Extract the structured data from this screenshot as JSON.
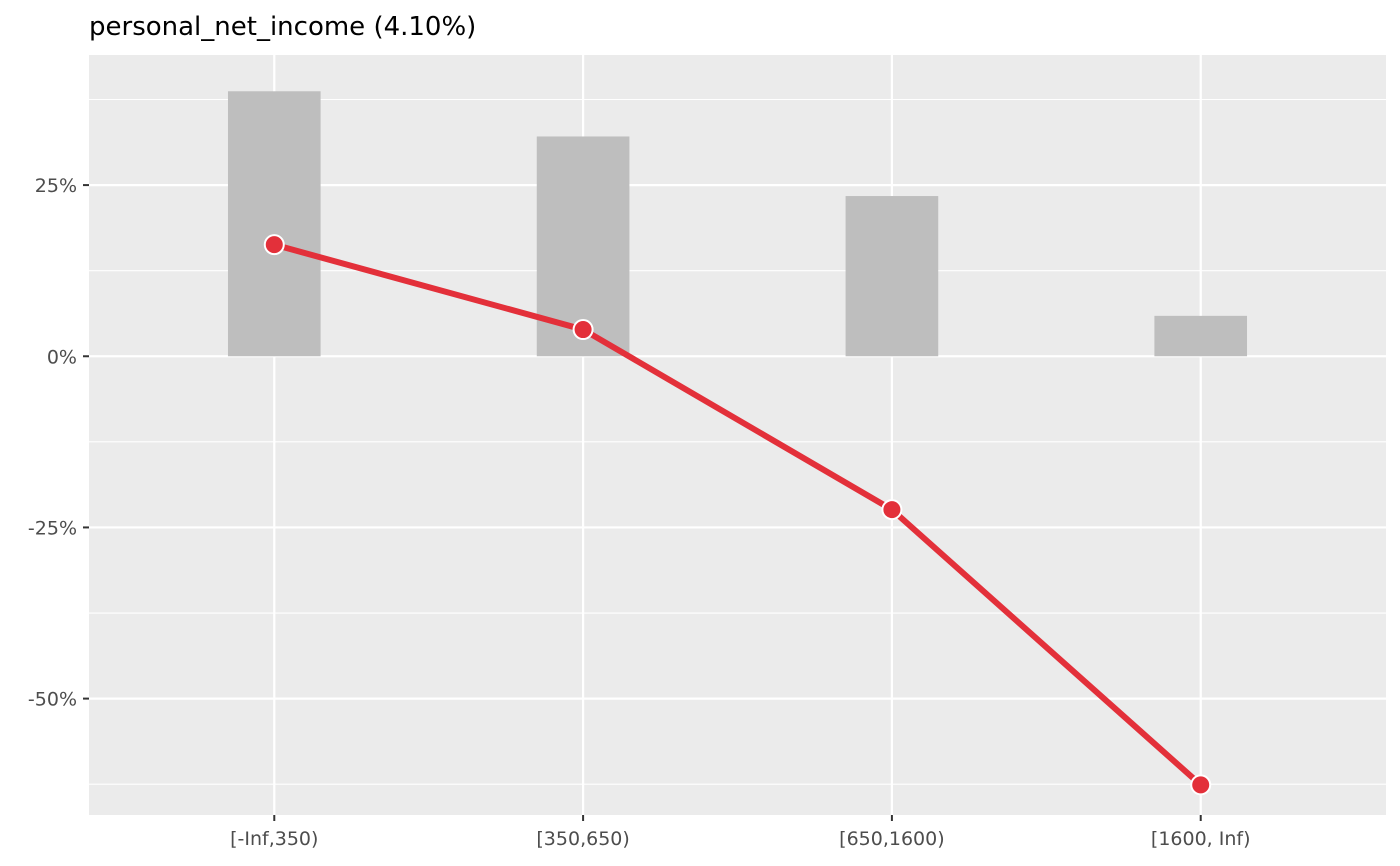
{
  "chart_data": {
    "type": "bar",
    "title": "personal_net_income (4.10%)",
    "xlabel": "",
    "ylabel": "",
    "categories": [
      "[-Inf,350)",
      "[350,650)",
      "[650,1600)",
      "[1600, Inf)"
    ],
    "series": [
      {
        "type": "bar",
        "values": [
          0.387,
          0.321,
          0.234,
          0.059
        ]
      },
      {
        "type": "line",
        "values": [
          0.163,
          0.039,
          -0.224,
          -0.626
        ]
      }
    ],
    "ylim": [
      -0.67,
      0.44
    ],
    "yticks": [
      -0.5,
      -0.25,
      0,
      0.25
    ],
    "ytick_labels": [
      "-50%",
      "-25%",
      "0%",
      "25%"
    ],
    "grid": true,
    "colors": {
      "panel": "#EBEBEB",
      "grid": "#FFFFFF",
      "bar": "#BEBEBE",
      "line": "#E3303A"
    }
  }
}
